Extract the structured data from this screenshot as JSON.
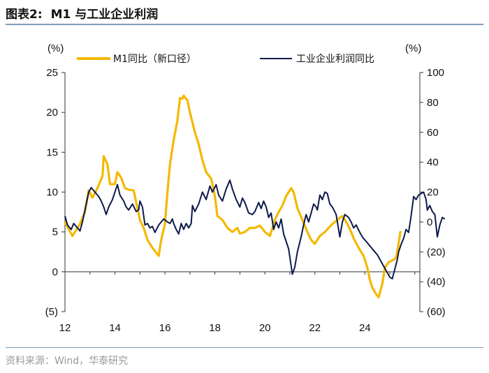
{
  "figure": {
    "label": "图表2:",
    "title": "M1 与工业企业利润",
    "source": "资料来源：Wind，华泰研究"
  },
  "colors": {
    "m1": "#f5b800",
    "profit": "#0d1a4a",
    "axis": "#333333",
    "rule": "#7f9db9"
  },
  "chart_data": {
    "type": "line",
    "x_ticks": [
      "12",
      "14",
      "16",
      "18",
      "20",
      "22",
      "24"
    ],
    "left_axis": {
      "unit": "(%)",
      "range": [
        -5,
        25
      ],
      "ticks": [
        25,
        20,
        15,
        10,
        5,
        0,
        -5
      ],
      "tick_labels": [
        "25",
        "20",
        "15",
        "10",
        "5",
        "0",
        "(5)"
      ]
    },
    "right_axis": {
      "unit": "(%)",
      "range": [
        -60,
        100
      ],
      "ticks": [
        100,
        80,
        60,
        40,
        20,
        0,
        -20,
        -40,
        -60
      ],
      "tick_labels": [
        "100",
        "80",
        "60",
        "40",
        "20",
        "0",
        "(20)",
        "(40)",
        "(60)"
      ]
    },
    "series": [
      {
        "name": "M1同比（新口径）",
        "axis": "left",
        "points": [
          [
            2012.0,
            6.2
          ],
          [
            2012.3,
            4.5
          ],
          [
            2012.6,
            6.0
          ],
          [
            2012.8,
            7.5
          ],
          [
            2012.95,
            10.2
          ],
          [
            2013.1,
            9.3
          ],
          [
            2013.3,
            10.5
          ],
          [
            2013.5,
            12.0
          ],
          [
            2013.55,
            14.5
          ],
          [
            2013.7,
            13.5
          ],
          [
            2013.8,
            11.0
          ],
          [
            2014.0,
            11.0
          ],
          [
            2014.1,
            12.5
          ],
          [
            2014.25,
            11.8
          ],
          [
            2014.4,
            10.5
          ],
          [
            2014.55,
            10.3
          ],
          [
            2014.75,
            10.2
          ],
          [
            2014.9,
            8.0
          ],
          [
            2015.0,
            6.5
          ],
          [
            2015.15,
            5.5
          ],
          [
            2015.3,
            4.0
          ],
          [
            2015.5,
            3.0
          ],
          [
            2015.75,
            2.0
          ],
          [
            2015.85,
            4.0
          ],
          [
            2016.0,
            6.0
          ],
          [
            2016.1,
            10.0
          ],
          [
            2016.2,
            13.5
          ],
          [
            2016.35,
            16.5
          ],
          [
            2016.5,
            19.0
          ],
          [
            2016.6,
            21.8
          ],
          [
            2016.7,
            21.7
          ],
          [
            2016.75,
            22.1
          ],
          [
            2016.9,
            21.5
          ],
          [
            2017.0,
            20.0
          ],
          [
            2017.2,
            17.5
          ],
          [
            2017.35,
            16.0
          ],
          [
            2017.5,
            14.0
          ],
          [
            2017.65,
            12.5
          ],
          [
            2017.85,
            11.7
          ],
          [
            2018.0,
            9.5
          ],
          [
            2018.1,
            7.0
          ],
          [
            2018.3,
            6.5
          ],
          [
            2018.5,
            5.5
          ],
          [
            2018.7,
            5.0
          ],
          [
            2018.9,
            5.5
          ],
          [
            2019.0,
            4.8
          ],
          [
            2019.2,
            5.0
          ],
          [
            2019.4,
            5.5
          ],
          [
            2019.6,
            5.5
          ],
          [
            2019.8,
            5.8
          ],
          [
            2020.0,
            5.0
          ],
          [
            2020.2,
            4.5
          ],
          [
            2020.4,
            6.5
          ],
          [
            2020.55,
            7.5
          ],
          [
            2020.7,
            8.3
          ],
          [
            2020.85,
            9.5
          ],
          [
            2020.95,
            10.0
          ],
          [
            2021.05,
            10.5
          ],
          [
            2021.15,
            10.0
          ],
          [
            2021.3,
            8.0
          ],
          [
            2021.5,
            6.5
          ],
          [
            2021.7,
            5.0
          ],
          [
            2021.85,
            4.0
          ],
          [
            2022.0,
            3.5
          ],
          [
            2022.2,
            4.5
          ],
          [
            2022.4,
            5.0
          ],
          [
            2022.55,
            5.5
          ],
          [
            2022.7,
            6.0
          ],
          [
            2022.9,
            6.5
          ],
          [
            2023.1,
            7.0
          ],
          [
            2023.3,
            6.0
          ],
          [
            2023.45,
            5.0
          ],
          [
            2023.55,
            4.2
          ],
          [
            2023.75,
            3.0
          ],
          [
            2023.95,
            2.0
          ],
          [
            2024.1,
            0.5
          ],
          [
            2024.2,
            -1.0
          ],
          [
            2024.3,
            -2.0
          ],
          [
            2024.45,
            -2.8
          ],
          [
            2024.55,
            -3.2
          ],
          [
            2024.7,
            -1.5
          ],
          [
            2024.8,
            0.5
          ],
          [
            2024.95,
            1.2
          ],
          [
            2025.15,
            1.5
          ],
          [
            2025.25,
            1.8
          ],
          [
            2025.35,
            3.5
          ],
          [
            2025.42,
            5.0
          ]
        ]
      },
      {
        "name": "工业企业利润同比",
        "axis": "right",
        "points": [
          [
            2012.0,
            4.0
          ],
          [
            2012.1,
            -2.0
          ],
          [
            2012.25,
            -5.0
          ],
          [
            2012.35,
            -1.0
          ],
          [
            2012.5,
            -4.0
          ],
          [
            2012.6,
            -6.0
          ],
          [
            2012.7,
            0.0
          ],
          [
            2012.8,
            8.0
          ],
          [
            2012.95,
            20.0
          ],
          [
            2013.05,
            23.0
          ],
          [
            2013.2,
            20.0
          ],
          [
            2013.35,
            17.0
          ],
          [
            2013.45,
            14.0
          ],
          [
            2013.55,
            10.0
          ],
          [
            2013.65,
            5.0
          ],
          [
            2013.75,
            10.0
          ],
          [
            2013.9,
            15.0
          ],
          [
            2014.0,
            20.0
          ],
          [
            2014.1,
            25.0
          ],
          [
            2014.2,
            18.0
          ],
          [
            2014.35,
            14.0
          ],
          [
            2014.45,
            10.0
          ],
          [
            2014.55,
            8.0
          ],
          [
            2014.7,
            12.0
          ],
          [
            2014.85,
            7.0
          ],
          [
            2014.95,
            8.0
          ],
          [
            2015.0,
            14.0
          ],
          [
            2015.1,
            10.0
          ],
          [
            2015.2,
            -2.0
          ],
          [
            2015.3,
            -1.0
          ],
          [
            2015.4,
            -4.0
          ],
          [
            2015.5,
            -3.0
          ],
          [
            2015.6,
            -7.0
          ],
          [
            2015.75,
            -2.0
          ],
          [
            2015.95,
            2.0
          ],
          [
            2016.1,
            0.0
          ],
          [
            2016.2,
            -1.0
          ],
          [
            2016.3,
            2.0
          ],
          [
            2016.35,
            -1.0
          ],
          [
            2016.45,
            -5.0
          ],
          [
            2016.55,
            -8.0
          ],
          [
            2016.65,
            -1.0
          ],
          [
            2016.75,
            -5.0
          ],
          [
            2016.85,
            -1.0
          ],
          [
            2016.95,
            -4.0
          ],
          [
            2017.05,
            -1.0
          ],
          [
            2017.1,
            11.0
          ],
          [
            2017.2,
            7.0
          ],
          [
            2017.35,
            12.0
          ],
          [
            2017.5,
            20.0
          ],
          [
            2017.65,
            15.0
          ],
          [
            2017.8,
            24.0
          ],
          [
            2017.9,
            20.0
          ],
          [
            2018.05,
            25.0
          ],
          [
            2018.15,
            18.0
          ],
          [
            2018.3,
            14.0
          ],
          [
            2018.45,
            22.0
          ],
          [
            2018.6,
            28.0
          ],
          [
            2018.7,
            22.0
          ],
          [
            2018.85,
            15.0
          ],
          [
            2019.0,
            10.0
          ],
          [
            2019.1,
            16.0
          ],
          [
            2019.2,
            13.0
          ],
          [
            2019.35,
            6.0
          ],
          [
            2019.5,
            5.0
          ],
          [
            2019.6,
            7.0
          ],
          [
            2019.75,
            13.0
          ],
          [
            2019.85,
            9.0
          ],
          [
            2019.95,
            14.0
          ],
          [
            2020.05,
            10.0
          ],
          [
            2020.15,
            3.0
          ],
          [
            2020.25,
            6.0
          ],
          [
            2020.35,
            -5.0
          ],
          [
            2020.45,
            0.0
          ],
          [
            2020.55,
            -4.0
          ],
          [
            2020.65,
            2.0
          ],
          [
            2020.75,
            -8.0
          ],
          [
            2020.95,
            -18.0
          ],
          [
            2021.1,
            -35.0
          ],
          [
            2021.2,
            -30.0
          ],
          [
            2021.3,
            -20.0
          ],
          [
            2021.45,
            -10.0
          ],
          [
            2021.55,
            -2.0
          ],
          [
            2021.65,
            5.0
          ],
          [
            2021.75,
            0.0
          ],
          [
            2021.85,
            6.0
          ],
          [
            2021.95,
            12.0
          ],
          [
            2022.05,
            10.0
          ],
          [
            2022.1,
            8.0
          ],
          [
            2022.2,
            18.0
          ],
          [
            2022.3,
            15.0
          ],
          [
            2022.4,
            20.0
          ],
          [
            2022.5,
            19.0
          ],
          [
            2022.6,
            12.0
          ],
          [
            2022.7,
            10.0
          ],
          [
            2022.85,
            5.0
          ],
          [
            2023.0,
            -10.0
          ],
          [
            2023.1,
            0.0
          ],
          [
            2023.2,
            5.0
          ],
          [
            2023.35,
            3.0
          ],
          [
            2023.45,
            0.0
          ],
          [
            2023.55,
            -4.0
          ],
          [
            2023.65,
            -2.0
          ],
          [
            2023.8,
            -7.0
          ],
          [
            2023.9,
            -10.0
          ],
          [
            2024.0,
            -12.0
          ],
          [
            2024.1,
            -14.0
          ],
          [
            2024.2,
            -16.0
          ],
          [
            2024.3,
            -18.0
          ],
          [
            2024.4,
            -20.0
          ],
          [
            2024.5,
            -22.0
          ],
          [
            2024.6,
            -25.0
          ],
          [
            2024.7,
            -28.0
          ],
          [
            2024.8,
            -31.0
          ],
          [
            2024.9,
            -34.0
          ],
          [
            2025.0,
            -37.0
          ],
          [
            2025.1,
            -38.0
          ],
          [
            2025.3,
            -25.0
          ],
          [
            2025.35,
            -20.0
          ],
          [
            2025.45,
            -15.0
          ],
          [
            2025.55,
            -11.0
          ],
          [
            2025.65,
            -5.0
          ],
          [
            2025.75,
            -7.0
          ],
          [
            2025.85,
            4.0
          ],
          [
            2025.95,
            17.0
          ],
          [
            2026.05,
            15.0
          ],
          [
            2026.15,
            18.0
          ],
          [
            2026.25,
            19.0
          ],
          [
            2026.35,
            20.0
          ],
          [
            2026.45,
            15.0
          ],
          [
            2026.5,
            8.0
          ],
          [
            2026.6,
            11.0
          ],
          [
            2026.7,
            7.0
          ],
          [
            2026.8,
            5.0
          ],
          [
            2026.9,
            -10.0
          ],
          [
            2027.0,
            -2.0
          ],
          [
            2027.1,
            3.0
          ],
          [
            2027.2,
            2.0
          ]
        ]
      }
    ]
  }
}
